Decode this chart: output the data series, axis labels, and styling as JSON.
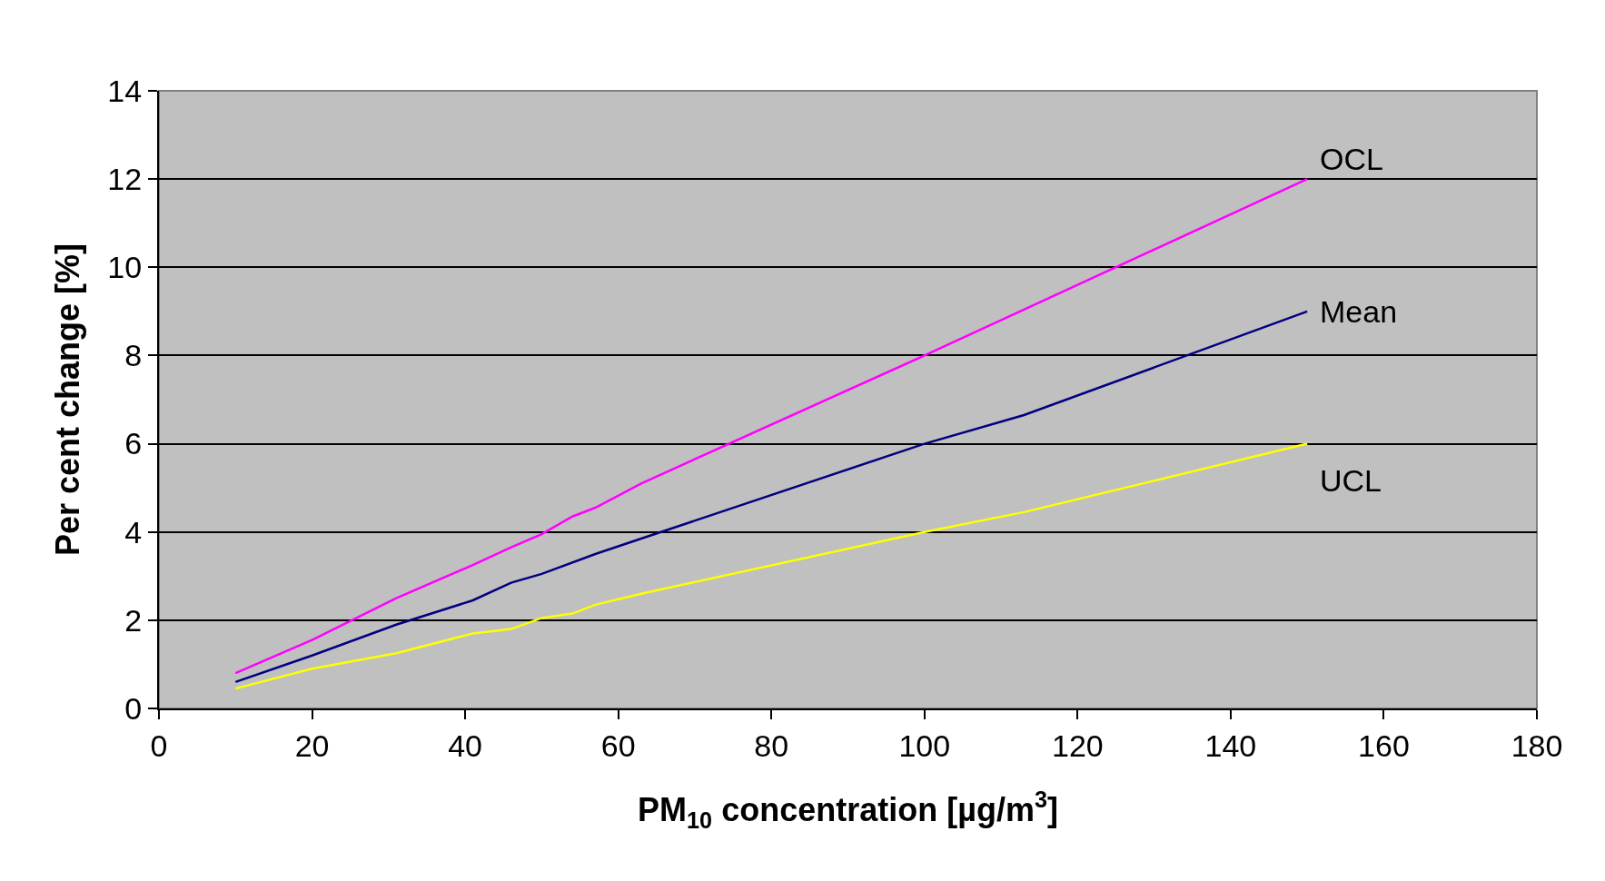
{
  "chart_data": {
    "type": "line",
    "xlabel": "PM$_{10}$ concentration [µg/m$^{3}$]",
    "ylabel": "Per cent change [%]",
    "xlim": [
      0,
      180
    ],
    "xticks": [
      0,
      20,
      40,
      60,
      80,
      100,
      120,
      140,
      160,
      180
    ],
    "ylim": [
      0,
      14
    ],
    "yticks": [
      0,
      2,
      4,
      6,
      8,
      10,
      12,
      14
    ],
    "grid": "y",
    "legend": false,
    "marker": "none",
    "line_style": "solid",
    "series": [
      {
        "name": "OCL",
        "color": "#ff00ff",
        "x": [
          10,
          20,
          31,
          41,
          46,
          50,
          54,
          57,
          63,
          100,
          150
        ],
        "values": [
          0.8,
          1.55,
          2.5,
          3.25,
          3.65,
          3.95,
          4.35,
          4.55,
          5.1,
          8.0,
          12.0
        ]
      },
      {
        "name": "Mean",
        "color": "#000080",
        "x": [
          10,
          20,
          31,
          41,
          46,
          50,
          57,
          63,
          100,
          113,
          150
        ],
        "values": [
          0.6,
          1.2,
          1.9,
          2.45,
          2.85,
          3.05,
          3.5,
          3.85,
          6.0,
          6.65,
          9.0
        ]
      },
      {
        "name": "UCL",
        "color": "#ffff00",
        "x": [
          10,
          20,
          31,
          41,
          46,
          50,
          54,
          57,
          63,
          100,
          113,
          150
        ],
        "values": [
          0.45,
          0.9,
          1.25,
          1.7,
          1.8,
          2.05,
          2.15,
          2.35,
          2.6,
          4.0,
          4.45,
          6.0
        ]
      }
    ]
  }
}
